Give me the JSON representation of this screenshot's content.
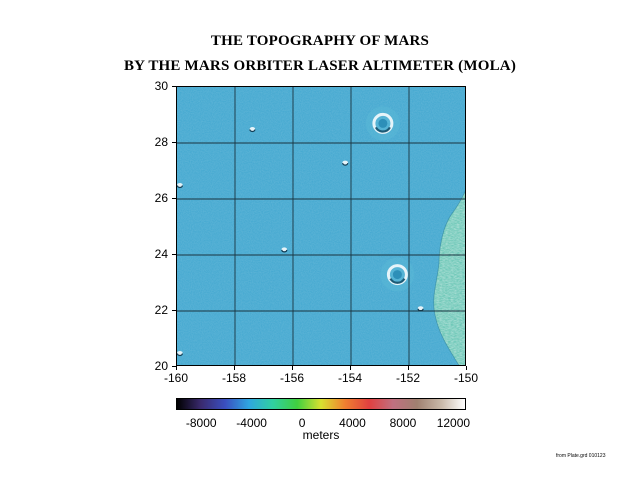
{
  "title_line1": "THE TOPOGRAPHY OF MARS",
  "title_line2": "BY THE MARS ORBITER LASER ALTIMETER (MOLA)",
  "map": {
    "x_ticks": [
      "-160",
      "-158",
      "-156",
      "-154",
      "-152",
      "-150"
    ],
    "y_ticks": [
      "30",
      "28",
      "26",
      "24",
      "22",
      "20"
    ],
    "lon_range": [
      -160,
      -150
    ],
    "lat_range": [
      20,
      30
    ],
    "grid_step_deg": 2,
    "base_color": "#3fa6cf",
    "highland_color": "#6fc8b8",
    "craters": [
      {
        "lon": -152.9,
        "lat": 28.7,
        "size": "large"
      },
      {
        "lon": -152.4,
        "lat": 23.3,
        "size": "large"
      },
      {
        "lon": -156.3,
        "lat": 24.2,
        "size": "small"
      },
      {
        "lon": -157.4,
        "lat": 28.5,
        "size": "small"
      },
      {
        "lon": -154.2,
        "lat": 27.3,
        "size": "small"
      },
      {
        "lon": -151.6,
        "lat": 22.1,
        "size": "small"
      },
      {
        "lon": -159.9,
        "lat": 26.5,
        "size": "small"
      },
      {
        "lon": -159.9,
        "lat": 20.5,
        "size": "small"
      },
      {
        "lon": -153.0,
        "lat": 20.0,
        "size": "small"
      }
    ]
  },
  "colorbar": {
    "labels": [
      "-8000",
      "-4000",
      "0",
      "4000",
      "8000",
      "12000"
    ],
    "label_values": [
      -8000,
      -4000,
      0,
      4000,
      8000,
      12000
    ],
    "range": [
      -10000,
      13000
    ],
    "unit": "meters",
    "stops": [
      "#000000",
      "#3a2a6e",
      "#3a4fc0",
      "#2fa6e0",
      "#30d0a0",
      "#40d040",
      "#d8e030",
      "#f08030",
      "#e04040",
      "#c07080",
      "#a08070",
      "#c8b8a8",
      "#ffffff"
    ]
  },
  "footnote": "from Plate.grd 010123"
}
